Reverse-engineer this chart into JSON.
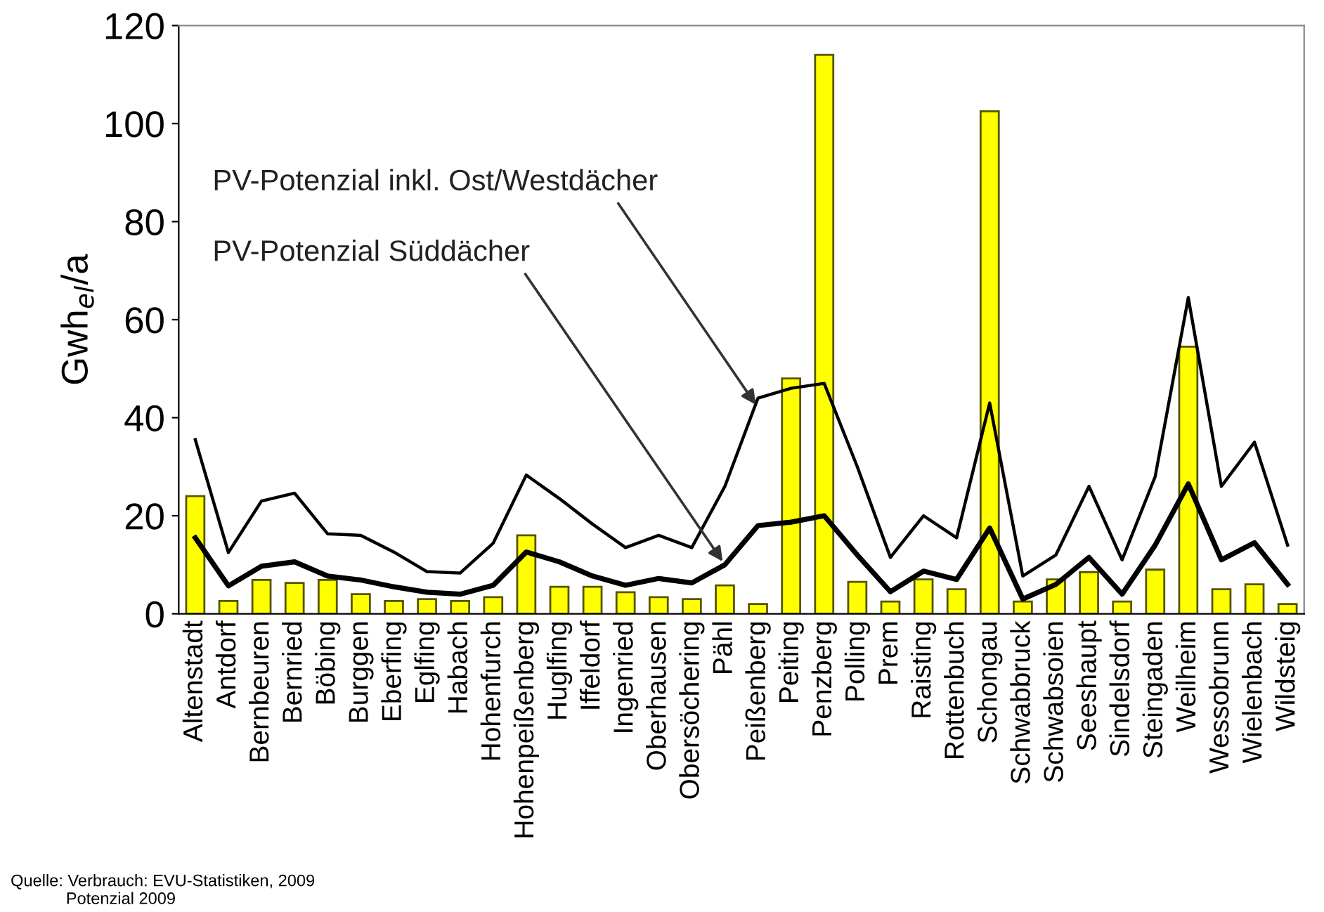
{
  "chart_data": {
    "type": "bar",
    "ylabel": "Gwh$_{el}$/a",
    "categories": [
      "Altenstadt",
      "Antdorf",
      "Bernbeuren",
      "Bernried",
      "Böbing",
      "Burggen",
      "Eberfing",
      "Eglfing",
      "Habach",
      "Hohenfurch",
      "Hohenpeißenberg",
      "Huglfing",
      "Iffeldorf",
      "Ingenried",
      "Oberhausen",
      "Obersöchering",
      "Pähl",
      "Peißenberg",
      "Peiting",
      "Penzberg",
      "Polling",
      "Prem",
      "Raisting",
      "Rottenbuch",
      "Schongau",
      "Schwabbruck",
      "Schwabsoien",
      "Seeshaupt",
      "Sindelsdorf",
      "Steingaden",
      "Weilheim",
      "Wessobrunn",
      "Wielenbach",
      "Wildsteig"
    ],
    "series": [
      {
        "color": "#ffff00",
        "values": [
          24,
          2.6,
          6.9,
          6.3,
          6.9,
          4,
          2.6,
          3,
          2.6,
          3.4,
          16,
          5.5,
          5.5,
          4.4,
          3.4,
          3,
          5.8,
          2,
          48,
          114,
          6.5,
          2.5,
          7,
          5,
          102.5,
          2.5,
          7,
          8.5,
          2.5,
          9,
          54.5,
          5,
          6,
          2
        ]
      },
      {
        "type": "line",
        "color": "#000000",
        "values": [
          35.5,
          12.5,
          23,
          24.6,
          16.3,
          16,
          12.6,
          8.6,
          8.3,
          14.4,
          28.3,
          23.5,
          18.3,
          13.5,
          16,
          13.5,
          26,
          44,
          46,
          47,
          30,
          11.5,
          20,
          15.5,
          43,
          7.7,
          12,
          26,
          11,
          28,
          64.5,
          26,
          35,
          14
        ]
      },
      {
        "type": "line",
        "color": "#000000",
        "values": [
          15.5,
          5.7,
          9.7,
          10.6,
          7.7,
          6.9,
          5.5,
          4.4,
          4,
          5.8,
          12.6,
          10.6,
          7.7,
          5.8,
          7.2,
          6.3,
          10,
          18,
          18.7,
          20,
          12,
          4.5,
          8.7,
          7,
          17.5,
          3,
          6,
          11.5,
          4,
          14,
          26.5,
          11,
          14.5,
          6
        ]
      }
    ],
    "ylim": [
      0,
      120
    ],
    "yticks": [
      0,
      20,
      40,
      60,
      80,
      100,
      120
    ],
    "grid": false,
    "annotations": [
      {
        "text": "PV-Potenzial inkl. Ost/Westdächer",
        "x": "Peißenberg",
        "y": 42
      },
      {
        "text": "PV-Potenzial Süddächer",
        "x": "Pähl",
        "y": 10
      },
      "Quelle: Verbrauch: EVU-Statistiken, 2009\n            Potenzial 2009"
    ]
  }
}
